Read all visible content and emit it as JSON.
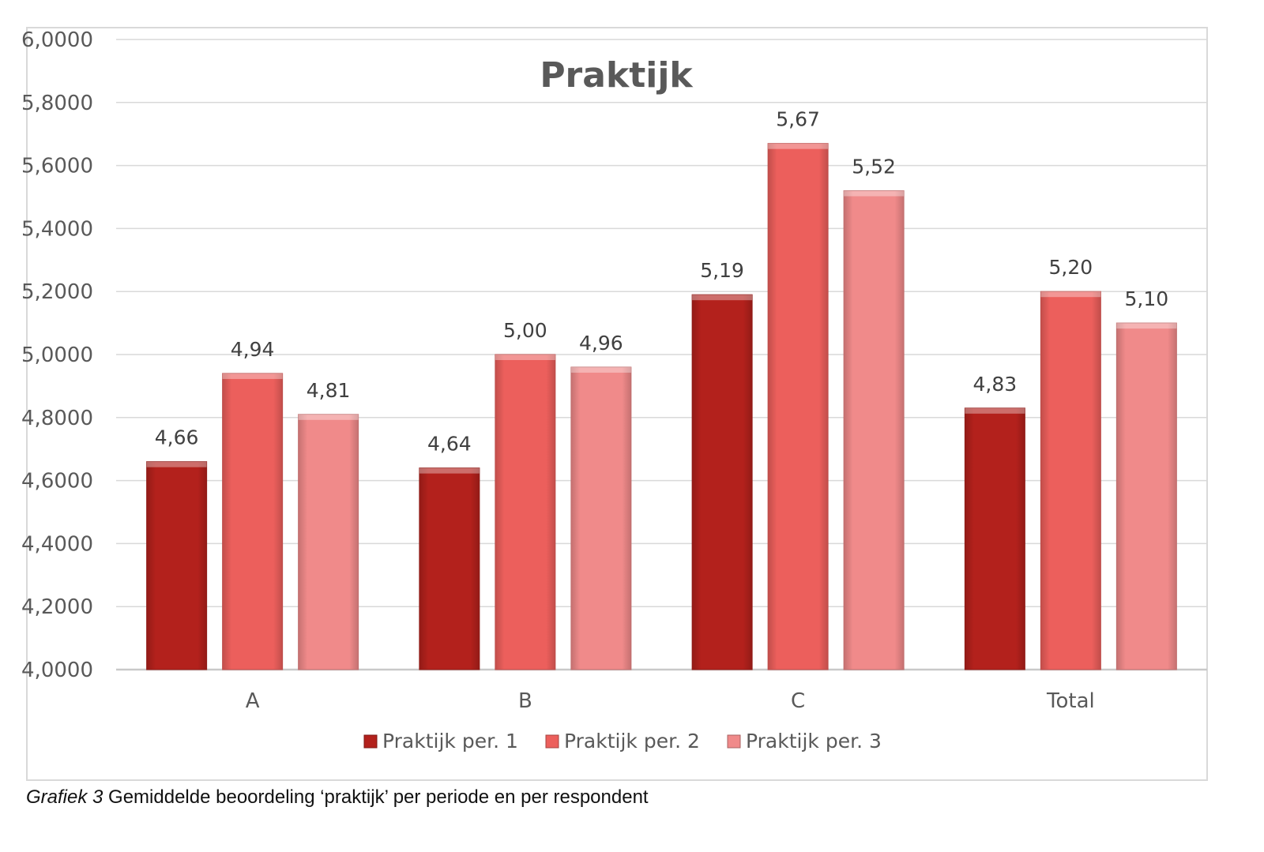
{
  "chart_data": {
    "type": "bar",
    "title": "Praktijk",
    "categories": [
      "A",
      "B",
      "C",
      "Total"
    ],
    "series": [
      {
        "name": "Praktijk per. 1",
        "values": [
          4.66,
          4.64,
          5.19,
          4.83
        ],
        "labels": [
          "4,66",
          "4,64",
          "5,19",
          "4,83"
        ],
        "color": "#b3211c"
      },
      {
        "name": "Praktijk per. 2",
        "values": [
          4.94,
          5.0,
          5.67,
          5.2
        ],
        "labels": [
          "4,94",
          "5,00",
          "5,67",
          "5,20"
        ],
        "color": "#ec5f5c"
      },
      {
        "name": "Praktijk per. 3",
        "values": [
          4.81,
          4.96,
          5.52,
          5.1
        ],
        "labels": [
          "4,81",
          "4,96",
          "5,52",
          "5,10"
        ],
        "color": "#f08a8a"
      }
    ],
    "ylim": [
      4.0,
      6.0
    ],
    "yticks": [
      4.0,
      4.2,
      4.4,
      4.6,
      4.8,
      5.0,
      5.2,
      5.4,
      5.6,
      5.8,
      6.0
    ],
    "ytick_labels": [
      "4,0000",
      "4,2000",
      "4,4000",
      "4,6000",
      "4,8000",
      "5,0000",
      "5,2000",
      "5,4000",
      "5,6000",
      "5,8000",
      "6,0000"
    ],
    "xlabel": "",
    "ylabel": "",
    "grid": true,
    "legend": "bottom"
  },
  "caption": {
    "lead": "Grafiek 3",
    "text": " Gemiddelde beoordeling ‘praktijk’ per periode en per respondent"
  }
}
